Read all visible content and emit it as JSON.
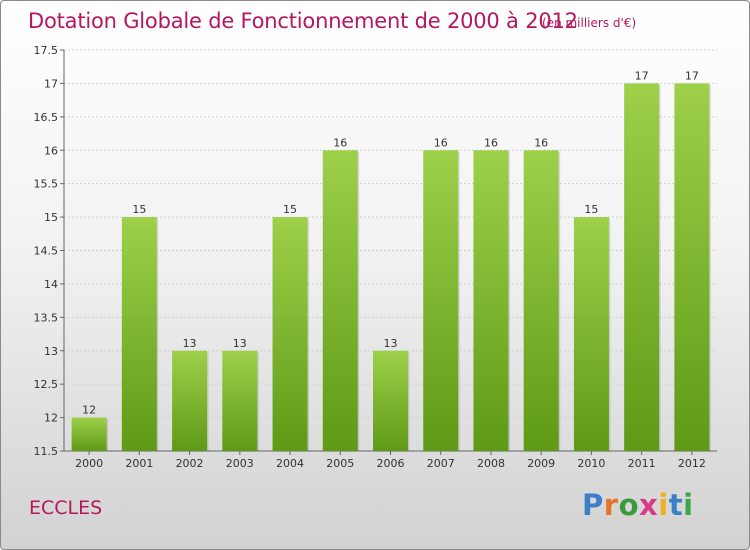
{
  "header": {
    "title": "Dotation Globale de Fonctionnement de 2000 à 2012",
    "unit": "(en milliers d'€)"
  },
  "footer": {
    "commune": "ECCLES",
    "logo_text": "Proxiti",
    "logo_letters": [
      {
        "char": "P",
        "color": "#3a7fc8"
      },
      {
        "char": "r",
        "color": "#e6732a"
      },
      {
        "char": "o",
        "color": "#3a9b3a"
      },
      {
        "char": "x",
        "color": "#d83a8a"
      },
      {
        "char": "i",
        "color": "#f0b020"
      },
      {
        "char": "t",
        "color": "#3a7fc8"
      },
      {
        "char": "i",
        "color": "#3aa848"
      }
    ]
  },
  "colors": {
    "bar_light": "#9ed04a",
    "bar_dark": "#5e9a16",
    "title": "#b5175f",
    "grid": "#cfcfcf"
  },
  "chart_data": {
    "type": "bar",
    "categories": [
      "2000",
      "2001",
      "2002",
      "2003",
      "2004",
      "2005",
      "2006",
      "2007",
      "2008",
      "2009",
      "2010",
      "2011",
      "2012"
    ],
    "values": [
      12,
      15,
      13,
      13,
      15,
      16,
      13,
      16,
      16,
      16,
      15,
      17,
      17
    ],
    "data_labels": [
      "12",
      "15",
      "13",
      "13",
      "15",
      "16",
      "13",
      "16",
      "16",
      "16",
      "15",
      "17",
      "17"
    ],
    "ylim": [
      11.5,
      17.5
    ],
    "yticks": [
      11.5,
      12,
      12.5,
      13,
      13.5,
      14,
      14.5,
      15,
      15.5,
      16,
      16.5,
      17,
      17.5
    ],
    "ytick_labels": [
      "11.5",
      "12",
      "12.5",
      "13",
      "13.5",
      "14",
      "14.5",
      "15",
      "15.5",
      "16",
      "16.5",
      "17",
      "17.5"
    ],
    "grid": true
  }
}
